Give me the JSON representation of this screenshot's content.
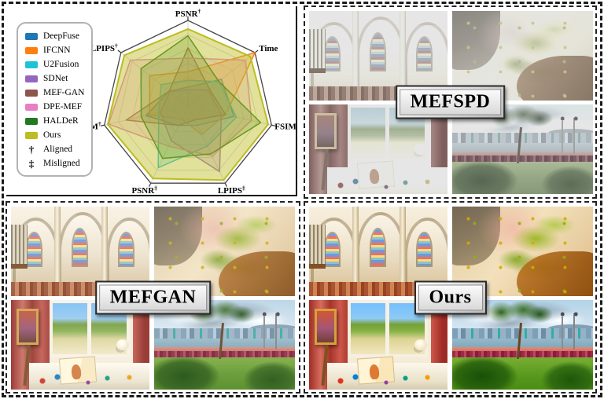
{
  "panels": {
    "mefspd": {
      "label": "MEFSPD",
      "images": [
        "cathedral interior (over-exposed, washed out)",
        "rock and moss close-up (washed out)",
        "artist room with window (hazy view)",
        "harbor park with skyline (hazy sky)"
      ]
    },
    "mefgan": {
      "label": "MEFGAN",
      "images": [
        "cathedral interior",
        "rock and moss close-up (painterly artifacts)",
        "artist room with window (blue sky)",
        "harbor park with skyline"
      ]
    },
    "ours": {
      "label": "Ours",
      "images": [
        "cathedral interior (vivid)",
        "rock and moss close-up (vivid)",
        "artist room with window (vivid)",
        "harbor park with skyline (dramatic clouds)"
      ]
    }
  },
  "chart_data": {
    "type": "radar",
    "title": "",
    "axes": [
      {
        "label": "PSNR",
        "sup": "†"
      },
      {
        "label": "Time",
        "sup": ""
      },
      {
        "label": "FSIM",
        "sup": "‡"
      },
      {
        "label": "LPIPS",
        "sup": "‡"
      },
      {
        "label": "PSNR",
        "sup": "‡"
      },
      {
        "label": "FSIM",
        "sup": "†"
      },
      {
        "label": "LPIPS",
        "sup": "†"
      }
    ],
    "axis_order_note": "clockwise from top",
    "scale": [
      0,
      1
    ],
    "values_unit": "normalized radius (no numeric ticks shown)",
    "grid_rings": 6,
    "grid": true,
    "legend_position": "upper-left",
    "series": [
      {
        "name": "DeepFuse",
        "color": "#1f77b4",
        "values": [
          0.22,
          0.5,
          0.55,
          0.25,
          0.25,
          0.5,
          0.28
        ]
      },
      {
        "name": "IFCNN",
        "color": "#ff7f0e",
        "values": [
          0.4,
          1.0,
          0.45,
          0.37,
          0.17,
          0.46,
          0.57
        ]
      },
      {
        "name": "U2Fusion",
        "color": "#1fc3d6",
        "values": [
          0.3,
          0.46,
          0.58,
          0.52,
          0.8,
          0.35,
          0.4
        ]
      },
      {
        "name": "SDNet",
        "color": "#9467bd",
        "values": [
          0.19,
          0.3,
          0.4,
          0.85,
          0.45,
          0.33,
          0.27
        ]
      },
      {
        "name": "MEF-GAN",
        "color": "#8c564b",
        "values": [
          0.68,
          0.32,
          0.45,
          0.18,
          0.25,
          0.74,
          0.28
        ]
      },
      {
        "name": "DPE-MEF",
        "color": "#e87fc4",
        "values": [
          0.56,
          0.86,
          0.76,
          0.65,
          0.52,
          0.95,
          0.86
        ]
      },
      {
        "name": "HALDeR",
        "color": "#217a21",
        "values": [
          0.82,
          0.46,
          0.87,
          0.62,
          0.68,
          0.56,
          0.7
        ]
      },
      {
        "name": "Ours",
        "color": "#bcbd22",
        "values": [
          0.9,
          0.93,
          0.96,
          0.96,
          0.94,
          0.96,
          0.95
        ]
      }
    ],
    "notes": [
      {
        "symbol": "†",
        "label": "Aligned"
      },
      {
        "symbol": "‡",
        "label": "Misligned"
      }
    ]
  }
}
